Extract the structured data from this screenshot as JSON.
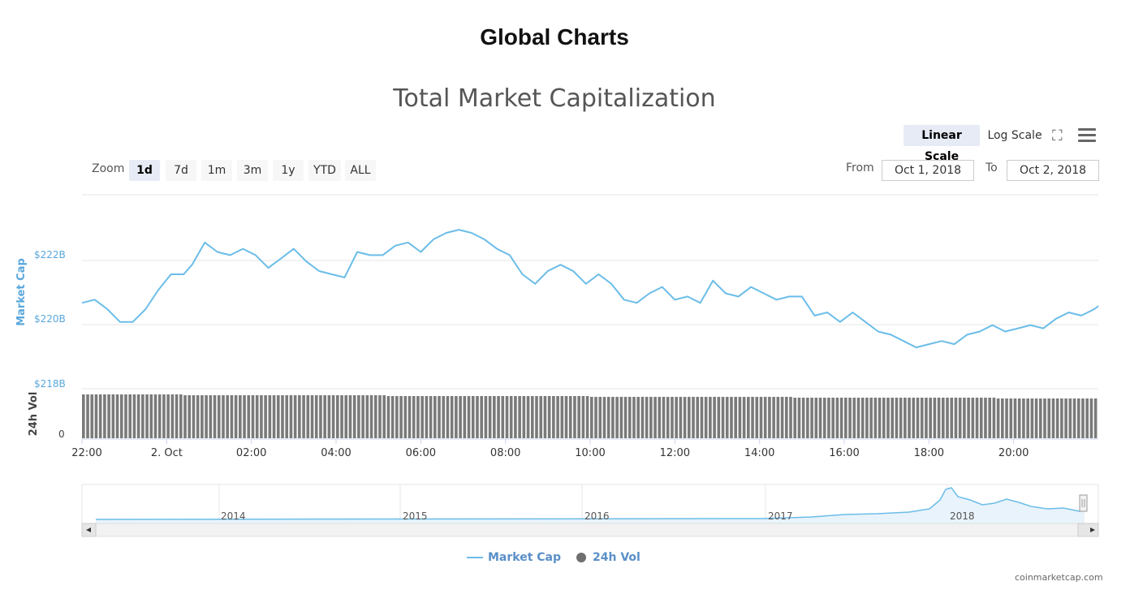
{
  "page": {
    "title": "Global Charts",
    "credit": "coinmarketcap.com"
  },
  "chart": {
    "title": "Total Market Capitalization",
    "scale_buttons": [
      {
        "label": "Linear Scale",
        "active": true
      },
      {
        "label": "Log Scale",
        "active": false
      }
    ],
    "zoom_label": "Zoom",
    "zoom_buttons": [
      "1d",
      "7d",
      "1m",
      "3m",
      "1y",
      "YTD",
      "ALL"
    ],
    "zoom_active": "1d",
    "from_label": "From",
    "from_value": "Oct 1, 2018",
    "to_label": "To",
    "to_value": "Oct 2, 2018",
    "icons": [
      "fullscreen-icon",
      "menu-icon"
    ],
    "colors": {
      "line": "#6bbde8",
      "bars": "#7a7a7a",
      "navigator_fill": "#e8f3fb"
    }
  },
  "chart_data": {
    "type": "line",
    "ylabel": "Market Cap",
    "ytick_labels": [
      "$222B",
      "$220B",
      "$218B"
    ],
    "ylim": [
      218,
      224.1
    ],
    "x_tick_labels": [
      "22:00",
      "2. Oct",
      "02:00",
      "04:00",
      "06:00",
      "08:00",
      "10:00",
      "12:00",
      "14:00",
      "16:00",
      "18:00",
      "20:00"
    ],
    "x_start_hour": 22,
    "x_end_hour": 46,
    "series": [
      {
        "name": "Market Cap",
        "x_hours": [
          22,
          22.3,
          22.6,
          22.9,
          23.2,
          23.5,
          23.8,
          24.1,
          24.4,
          24.6,
          24.9,
          25.2,
          25.5,
          25.8,
          26.1,
          26.4,
          26.7,
          27.0,
          27.3,
          27.6,
          27.9,
          28.2,
          28.5,
          28.8,
          29.1,
          29.4,
          29.7,
          30.0,
          30.3,
          30.6,
          30.9,
          31.2,
          31.5,
          31.8,
          32.1,
          32.4,
          32.7,
          33.0,
          33.3,
          33.6,
          33.9,
          34.2,
          34.5,
          34.8,
          35.1,
          35.4,
          35.7,
          36.0,
          36.3,
          36.6,
          36.9,
          37.2,
          37.5,
          37.8,
          38.1,
          38.4,
          38.7,
          39.0,
          39.3,
          39.6,
          39.9,
          40.2,
          40.5,
          40.8,
          41.1,
          41.4,
          41.7,
          42.0,
          42.3,
          42.6,
          42.9,
          43.2,
          43.5,
          43.8,
          44.1,
          44.4,
          44.7,
          45.0,
          45.3,
          45.6,
          45.9,
          46.0
        ],
        "values": [
          220.7,
          220.8,
          220.5,
          220.1,
          220.1,
          220.5,
          221.1,
          221.6,
          221.6,
          221.9,
          222.6,
          222.3,
          222.2,
          222.4,
          222.2,
          221.8,
          222.1,
          222.4,
          222.0,
          221.7,
          221.6,
          221.5,
          222.3,
          222.2,
          222.2,
          222.5,
          222.6,
          222.3,
          222.7,
          222.9,
          223.0,
          222.9,
          222.7,
          222.4,
          222.2,
          221.6,
          221.3,
          221.7,
          221.9,
          221.7,
          221.3,
          221.6,
          221.3,
          220.8,
          220.7,
          221.0,
          221.2,
          220.8,
          220.9,
          220.7,
          221.4,
          221.0,
          220.9,
          221.2,
          221.0,
          220.8,
          220.9,
          220.9,
          220.3,
          220.4,
          220.1,
          220.4,
          220.1,
          219.8,
          219.7,
          219.5,
          219.3,
          219.4,
          219.5,
          219.4,
          219.7,
          219.8,
          220.0,
          219.8,
          219.9,
          220.0,
          219.9,
          220.2,
          220.4,
          220.3,
          220.5,
          220.6
        ]
      },
      {
        "name": "24h Vol",
        "type": "bar",
        "ytick_labels": [
          "0"
        ],
        "ylabel": "24h Vol"
      }
    ],
    "navigator": {
      "year_labels": [
        "2014",
        "2015",
        "2016",
        "2017",
        "2018"
      ]
    }
  }
}
